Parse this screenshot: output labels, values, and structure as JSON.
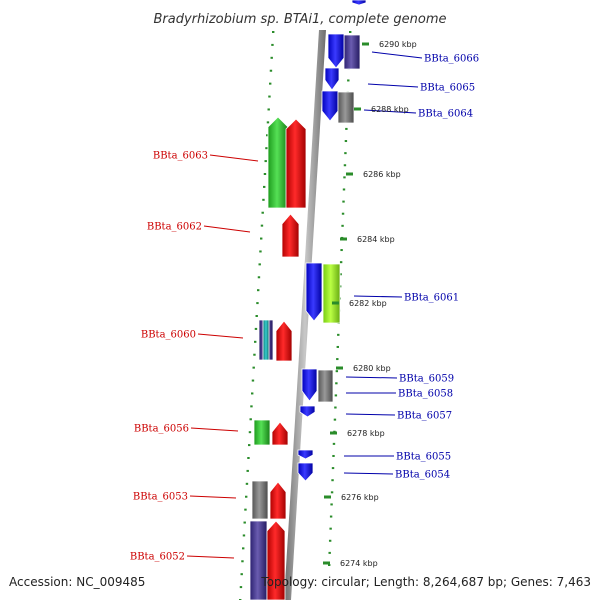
{
  "title": "Bradyrhizobium sp. BTAi1, complete genome",
  "footer": {
    "accession": "Accession: NC_009485",
    "topology": "Topology: circular; Length: 8,264,687 bp; Genes: 7,463"
  },
  "colors": {
    "backbone": "#8c8c8c",
    "ticks": "#2a8c2a",
    "reverse_label": "#cc0000",
    "forward_label": "#0000aa",
    "blue": "#1010ee",
    "red": "#ee0f0f",
    "green": "#33cc33",
    "lime": "#99ee22",
    "gray": "#777777",
    "navy": "#4a3d8f",
    "teal": "#22aaaa"
  },
  "ticks": [
    "6290 kbp",
    "6288 kbp",
    "6286 kbp",
    "6284 kbp",
    "6282 kbp",
    "6280 kbp",
    "6278 kbp",
    "6276 kbp",
    "6274 kbp"
  ],
  "genes_forward": [
    "BBta_6066",
    "BBta_6065",
    "BBta_6064",
    "BBta_6061",
    "BBta_6059",
    "BBta_6058",
    "BBta_6057",
    "BBta_6055",
    "BBta_6054"
  ],
  "genes_reverse": [
    "BBta_6063",
    "BBta_6062",
    "BBta_6060",
    "BBta_6056",
    "BBta_6053",
    "BBta_6052"
  ]
}
